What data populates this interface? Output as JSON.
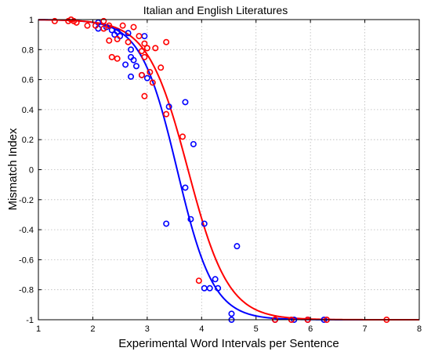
{
  "chart_data": {
    "type": "scatter",
    "title": "Italian and English Literatures",
    "xlabel": "Experimental Word Intervals per Sentence",
    "ylabel": "Mismatch Index",
    "xlim": [
      1,
      8
    ],
    "ylim": [
      -1,
      1
    ],
    "xticks": [
      "1",
      "2",
      "3",
      "4",
      "5",
      "6",
      "7",
      "8"
    ],
    "yticks": [
      "-1",
      "-0.8",
      "-0.6",
      "-0.4",
      "-0.2",
      "0",
      "0.2",
      "0.4",
      "0.6",
      "0.8",
      "1"
    ],
    "grid": true,
    "series": [
      {
        "color": "#0000ff",
        "points": [
          [
            2.1,
            0.98
          ],
          [
            2.1,
            0.94
          ],
          [
            2.25,
            0.95
          ],
          [
            2.35,
            0.93
          ],
          [
            2.45,
            0.92
          ],
          [
            2.4,
            0.9
          ],
          [
            2.5,
            0.89
          ],
          [
            2.65,
            0.91
          ],
          [
            2.7,
            0.8
          ],
          [
            2.7,
            0.75
          ],
          [
            2.75,
            0.73
          ],
          [
            2.6,
            0.7
          ],
          [
            2.8,
            0.69
          ],
          [
            2.7,
            0.62
          ],
          [
            2.9,
            0.63
          ],
          [
            2.95,
            0.89
          ],
          [
            3.0,
            0.61
          ],
          [
            3.4,
            0.42
          ],
          [
            3.7,
            0.45
          ],
          [
            3.85,
            0.17
          ],
          [
            3.7,
            -0.12
          ],
          [
            3.8,
            -0.33
          ],
          [
            3.35,
            -0.36
          ],
          [
            4.05,
            -0.36
          ],
          [
            4.05,
            -0.79
          ],
          [
            4.15,
            -0.79
          ],
          [
            4.25,
            -0.73
          ],
          [
            4.3,
            -0.79
          ],
          [
            4.55,
            -0.96
          ],
          [
            4.55,
            -1.0
          ],
          [
            4.65,
            -0.51
          ],
          [
            5.35,
            -1.0
          ],
          [
            5.7,
            -1.0
          ],
          [
            5.95,
            -1.0
          ],
          [
            6.25,
            -1.0
          ]
        ],
        "curve": {
          "midpoint": 3.55,
          "steepness": 3.0
        }
      },
      {
        "color": "#ff0000",
        "points": [
          [
            1.3,
            0.99
          ],
          [
            1.55,
            0.99
          ],
          [
            1.6,
            1.0
          ],
          [
            1.65,
            0.99
          ],
          [
            1.7,
            0.98
          ],
          [
            1.9,
            0.96
          ],
          [
            2.05,
            0.96
          ],
          [
            2.2,
            0.99
          ],
          [
            2.3,
            0.96
          ],
          [
            2.2,
            0.94
          ],
          [
            2.3,
            0.86
          ],
          [
            2.35,
            0.75
          ],
          [
            2.45,
            0.87
          ],
          [
            2.45,
            0.74
          ],
          [
            2.55,
            0.96
          ],
          [
            2.65,
            0.85
          ],
          [
            2.75,
            0.95
          ],
          [
            2.85,
            0.89
          ],
          [
            2.9,
            0.79
          ],
          [
            2.9,
            0.63
          ],
          [
            2.95,
            0.84
          ],
          [
            2.95,
            0.75
          ],
          [
            3.0,
            0.81
          ],
          [
            2.95,
            0.49
          ],
          [
            3.05,
            0.65
          ],
          [
            3.1,
            0.58
          ],
          [
            3.15,
            0.81
          ],
          [
            3.25,
            0.68
          ],
          [
            3.35,
            0.85
          ],
          [
            3.35,
            0.37
          ],
          [
            3.65,
            0.22
          ],
          [
            3.95,
            -0.74
          ],
          [
            5.35,
            -1.0
          ],
          [
            5.65,
            -1.0
          ],
          [
            5.95,
            -1.0
          ],
          [
            6.3,
            -1.0
          ],
          [
            7.4,
            -1.0
          ]
        ],
        "curve": {
          "midpoint": 3.75,
          "steepness": 2.7
        }
      }
    ]
  }
}
